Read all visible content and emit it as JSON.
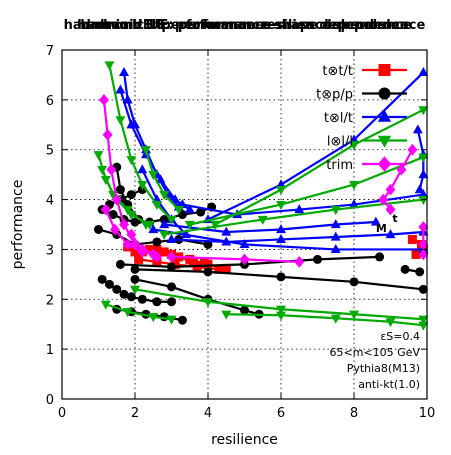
{
  "chart_data": {
    "type": "line",
    "title_layers": [
      "hadronic UE: performance-mass dependence",
      "hadronic UE: performance-shape dependence",
      "hadronic UE: performance-resilience dependence"
    ],
    "xlabel": "resilience",
    "ylabel": "performance",
    "xlim": [
      0,
      10
    ],
    "ylim": [
      0,
      7
    ],
    "xticks": [
      "0",
      "2",
      "4",
      "6",
      "8",
      "10"
    ],
    "yticks": [
      "0",
      "1",
      "2",
      "3",
      "4",
      "5",
      "6",
      "7"
    ],
    "grid": true,
    "legend_position": "top-right",
    "marker_labels": [
      "t",
      "M"
    ],
    "annotations": [
      "εS=0.4",
      "65<m<105 GeV",
      "Pythia8(M13)",
      "anti-kt(1.0)"
    ],
    "series": [
      {
        "name": "t⊗t/t",
        "color": "#ff0000",
        "marker": "square",
        "segments": [
          [
            [
              2.0,
              2.95
            ],
            [
              2.4,
              3.0
            ],
            [
              2.8,
              2.95
            ],
            [
              3.2,
              2.85
            ],
            [
              3.6,
              2.75
            ],
            [
              4.0,
              2.7
            ],
            [
              4.5,
              2.62
            ]
          ],
          [
            [
              1.8,
              3.05
            ],
            [
              2.2,
              2.95
            ],
            [
              2.6,
              3.0
            ],
            [
              3.0,
              2.9
            ],
            [
              3.5,
              2.8
            ],
            [
              3.9,
              2.72
            ]
          ],
          [
            [
              2.1,
              2.8
            ],
            [
              2.6,
              2.75
            ],
            [
              3.1,
              2.7
            ],
            [
              3.7,
              2.65
            ],
            [
              4.3,
              2.6
            ]
          ],
          [
            [
              9.6,
              3.2
            ],
            [
              9.85,
              3.1
            ]
          ],
          [
            [
              9.7,
              2.9
            ],
            [
              9.9,
              3.0
            ]
          ]
        ]
      },
      {
        "name": "t⊗p/p",
        "color": "#000000",
        "marker": "circle",
        "segments": [
          [
            [
              1.1,
              2.4
            ],
            [
              1.3,
              2.3
            ],
            [
              1.5,
              2.2
            ],
            [
              1.7,
              2.1
            ],
            [
              1.9,
              2.05
            ],
            [
              2.2,
              2.0
            ],
            [
              2.6,
              1.95
            ],
            [
              3.0,
              1.95
            ]
          ],
          [
            [
              1.5,
              1.8
            ],
            [
              1.9,
              1.75
            ],
            [
              2.3,
              1.7
            ],
            [
              2.8,
              1.65
            ],
            [
              3.3,
              1.58
            ]
          ],
          [
            [
              2.0,
              2.4
            ],
            [
              3.0,
              2.25
            ],
            [
              4.0,
              2.0
            ],
            [
              5.0,
              1.78
            ],
            [
              5.4,
              1.7
            ]
          ],
          [
            [
              1.1,
              3.8
            ],
            [
              1.4,
              3.7
            ],
            [
              1.7,
              3.6
            ],
            [
              2.0,
              3.55
            ],
            [
              2.4,
              3.55
            ],
            [
              2.8,
              3.6
            ],
            [
              3.3,
              3.7
            ],
            [
              3.8,
              3.75
            ],
            [
              4.1,
              3.85
            ]
          ],
          [
            [
              1.0,
              3.4
            ],
            [
              1.5,
              3.3
            ],
            [
              2.0,
              3.1
            ],
            [
              2.6,
              3.15
            ],
            [
              3.2,
              3.2
            ],
            [
              4.0,
              3.1
            ]
          ],
          [
            [
              1.3,
              3.9
            ],
            [
              1.6,
              4.0
            ],
            [
              1.9,
              4.1
            ],
            [
              2.2,
              4.2
            ]
          ],
          [
            [
              1.5,
              4.65
            ],
            [
              1.6,
              4.2
            ],
            [
              1.8,
              3.9
            ],
            [
              2.1,
              3.6
            ]
          ],
          [
            [
              1.6,
              2.7
            ],
            [
              3.0,
              2.65
            ],
            [
              5.0,
              2.7
            ],
            [
              7.0,
              2.8
            ],
            [
              8.7,
              2.85
            ]
          ],
          [
            [
              2.0,
              2.6
            ],
            [
              4.0,
              2.55
            ],
            [
              6.0,
              2.45
            ],
            [
              8.0,
              2.35
            ],
            [
              9.9,
              2.2
            ]
          ],
          [
            [
              9.4,
              2.6
            ],
            [
              9.8,
              2.55
            ]
          ]
        ]
      },
      {
        "name": "t⊗l/t",
        "color": "#0000ff",
        "marker": "triangle-up",
        "segments": [
          [
            [
              1.7,
              6.55
            ],
            [
              1.8,
              6.0
            ],
            [
              2.0,
              5.5
            ],
            [
              2.3,
              5.0
            ],
            [
              2.6,
              4.5
            ],
            [
              2.9,
              4.1
            ],
            [
              3.2,
              3.85
            ]
          ],
          [
            [
              1.6,
              6.2
            ],
            [
              1.9,
              5.5
            ],
            [
              2.3,
              4.9
            ],
            [
              2.7,
              4.4
            ],
            [
              3.1,
              4.0
            ],
            [
              3.5,
              3.8
            ]
          ],
          [
            [
              2.2,
              4.6
            ],
            [
              2.6,
              4.0
            ],
            [
              3.0,
              3.6
            ],
            [
              3.4,
              3.3
            ]
          ],
          [
            [
              2.8,
              3.5
            ],
            [
              4.5,
              3.35
            ],
            [
              6.0,
              3.4
            ],
            [
              7.5,
              3.5
            ],
            [
              8.6,
              3.55
            ]
          ],
          [
            [
              3.0,
              3.2
            ],
            [
              4.5,
              3.15
            ],
            [
              6.0,
              3.2
            ],
            [
              7.5,
              3.25
            ],
            [
              9.0,
              3.3
            ],
            [
              9.9,
              3.35
            ]
          ],
          [
            [
              3.3,
              3.9
            ],
            [
              4.8,
              3.7
            ],
            [
              6.5,
              3.8
            ],
            [
              8.0,
              3.9
            ],
            [
              9.9,
              4.1
            ]
          ],
          [
            [
              4.0,
              3.6
            ],
            [
              6.0,
              4.3
            ],
            [
              8.0,
              5.2
            ],
            [
              9.9,
              6.55
            ]
          ],
          [
            [
              2.5,
              3.4
            ],
            [
              5.0,
              3.1
            ],
            [
              7.5,
              3.0
            ],
            [
              9.9,
              3.0
            ]
          ],
          [
            [
              9.75,
              5.4
            ],
            [
              9.9,
              4.9
            ],
            [
              9.9,
              4.5
            ],
            [
              9.8,
              4.2
            ]
          ]
        ]
      },
      {
        "name": "l⊗l/l",
        "color": "#00aa00",
        "marker": "triangle-down",
        "segments": [
          [
            [
              1.3,
              6.7
            ],
            [
              1.6,
              5.6
            ],
            [
              1.9,
              4.8
            ],
            [
              2.2,
              4.3
            ],
            [
              2.6,
              3.9
            ],
            [
              3.0,
              3.6
            ]
          ],
          [
            [
              1.0,
              4.9
            ],
            [
              1.2,
              4.4
            ],
            [
              1.5,
              4.0
            ],
            [
              1.9,
              3.7
            ],
            [
              2.4,
              3.5
            ]
          ],
          [
            [
              1.1,
              4.6
            ],
            [
              1.4,
              4.1
            ],
            [
              1.8,
              3.8
            ],
            [
              2.3,
              3.5
            ]
          ],
          [
            [
              2.3,
              5.0
            ],
            [
              2.5,
              4.5
            ],
            [
              2.8,
              4.1
            ],
            [
              3.2,
              3.8
            ]
          ],
          [
            [
              1.2,
              1.9
            ],
            [
              1.8,
              1.75
            ],
            [
              2.5,
              1.65
            ],
            [
              3.0,
              1.6
            ]
          ],
          [
            [
              4.5,
              1.7
            ],
            [
              6.0,
              1.68
            ],
            [
              7.5,
              1.62
            ],
            [
              9.0,
              1.55
            ],
            [
              9.9,
              1.48
            ]
          ],
          [
            [
              2.0,
              2.2
            ],
            [
              4.0,
              1.95
            ],
            [
              6.0,
              1.8
            ],
            [
              8.0,
              1.7
            ],
            [
              9.9,
              1.6
            ]
          ],
          [
            [
              4.2,
              3.5
            ],
            [
              6.0,
              4.2
            ],
            [
              8.0,
              5.1
            ],
            [
              9.9,
              5.8
            ]
          ],
          [
            [
              3.5,
              3.5
            ],
            [
              6.0,
              3.9
            ],
            [
              8.0,
              4.3
            ],
            [
              9.9,
              4.85
            ]
          ],
          [
            [
              2.8,
              3.3
            ],
            [
              5.5,
              3.6
            ],
            [
              7.5,
              3.8
            ],
            [
              9.9,
              4.0
            ]
          ]
        ]
      },
      {
        "name": "trim",
        "color": "#ff00ff",
        "marker": "diamond",
        "segments": [
          [
            [
              1.15,
              6.0
            ],
            [
              1.25,
              5.3
            ],
            [
              1.35,
              4.6
            ],
            [
              1.5,
              4.0
            ],
            [
              1.7,
              3.5
            ],
            [
              2.0,
              3.1
            ],
            [
              2.5,
              2.9
            ]
          ],
          [
            [
              1.2,
              3.8
            ],
            [
              1.45,
              3.4
            ],
            [
              1.8,
              3.1
            ],
            [
              2.2,
              2.95
            ]
          ],
          [
            [
              1.9,
              3.3
            ],
            [
              2.2,
              3.0
            ],
            [
              2.6,
              2.85
            ]
          ],
          [
            [
              3.0,
              2.85
            ],
            [
              5.0,
              2.8
            ],
            [
              6.5,
              2.75
            ]
          ],
          [
            [
              9.6,
              5.0
            ],
            [
              9.3,
              4.6
            ],
            [
              9.0,
              4.2
            ],
            [
              8.8,
              4.0
            ],
            [
              9.0,
              3.8
            ]
          ],
          [
            [
              9.9,
              3.45
            ],
            [
              9.9,
              3.1
            ],
            [
              9.9,
              2.9
            ]
          ]
        ]
      }
    ]
  }
}
